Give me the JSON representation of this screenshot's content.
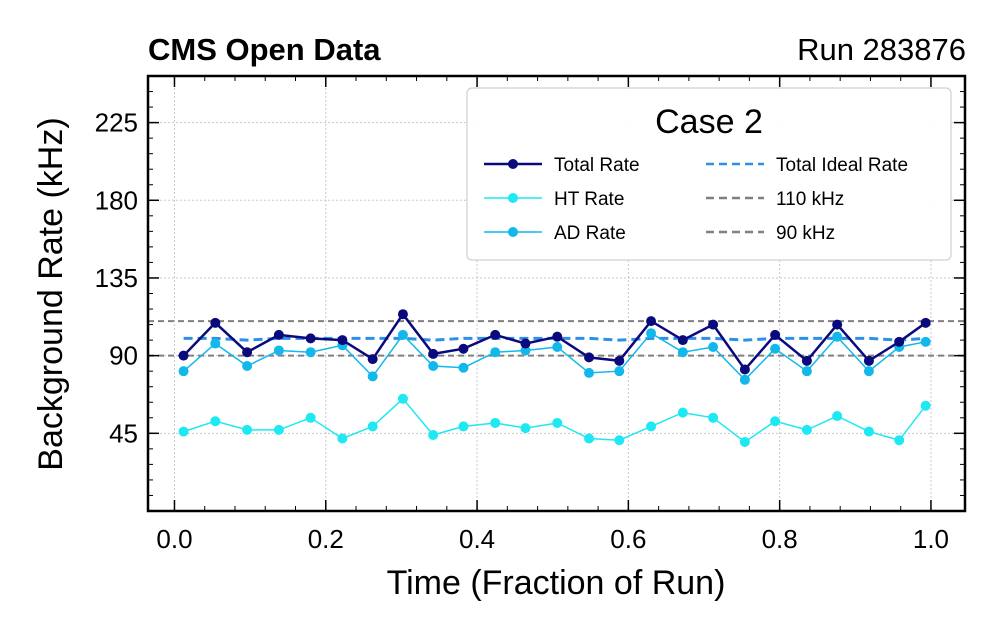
{
  "header": {
    "left": "CMS Open Data",
    "right": "Run 283876"
  },
  "chart_data": {
    "type": "line",
    "title": "Case 2",
    "xlabel": "Time (Fraction of Run)",
    "ylabel": "Background Rate (kHz)",
    "xlim": [
      -0.035,
      1.045
    ],
    "ylim": [
      0,
      252
    ],
    "xticks": [
      0.0,
      0.2,
      0.4,
      0.6,
      0.8,
      1.0
    ],
    "xtick_labels": [
      "0.0",
      "0.2",
      "0.4",
      "0.6",
      "0.8",
      "1.0"
    ],
    "yticks": [
      45,
      90,
      135,
      180,
      225
    ],
    "ytick_labels": [
      "45",
      "90",
      "135",
      "180",
      "225"
    ],
    "grid": true,
    "legend_position": "top-right",
    "x": [
      0.012,
      0.054,
      0.096,
      0.138,
      0.18,
      0.222,
      0.262,
      0.302,
      0.342,
      0.382,
      0.424,
      0.464,
      0.506,
      0.548,
      0.588,
      0.63,
      0.672,
      0.712,
      0.754,
      0.794,
      0.836,
      0.876,
      0.918,
      0.958,
      0.993
    ],
    "series": [
      {
        "name": "Total Rate",
        "color": "#0a0a7d",
        "style": "solid-marker",
        "values": [
          90,
          109,
          92,
          102,
          100,
          99,
          88,
          114,
          91,
          94,
          102,
          97,
          101,
          89,
          87,
          110,
          99,
          108,
          82,
          102,
          87,
          108,
          87,
          98,
          109
        ]
      },
      {
        "name": "HT Rate",
        "color": "#1ee8f2",
        "style": "solid-marker",
        "values": [
          46,
          52,
          47,
          47,
          54,
          42,
          49,
          65,
          44,
          49,
          51,
          48,
          51,
          42,
          41,
          49,
          57,
          54,
          40,
          52,
          47,
          55,
          46,
          41,
          61
        ]
      },
      {
        "name": "AD Rate",
        "color": "#12b8ea",
        "style": "solid-marker",
        "values": [
          81,
          97,
          84,
          93,
          92,
          96,
          78,
          102,
          84,
          83,
          92,
          93,
          95,
          80,
          81,
          103,
          92,
          95,
          76,
          94,
          81,
          101,
          81,
          95,
          98
        ]
      },
      {
        "name": "Total Ideal Rate",
        "color": "#2f8fe8",
        "style": "dashed",
        "values": [
          100,
          100,
          99,
          100,
          100,
          100,
          100,
          100,
          99,
          100,
          100,
          100,
          100,
          100,
          99,
          100,
          100,
          100,
          99,
          100,
          100,
          100,
          100,
          99,
          100
        ]
      }
    ],
    "reference_lines": [
      {
        "name": "110 kHz",
        "value": 110,
        "color": "#808080",
        "style": "dashed"
      },
      {
        "name": "90 kHz",
        "value": 90,
        "color": "#808080",
        "style": "dashed"
      }
    ]
  }
}
